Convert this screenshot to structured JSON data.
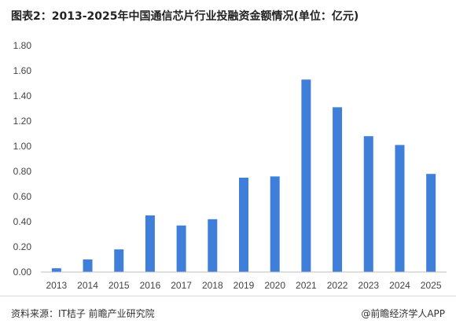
{
  "title": "图表2：2013-2025年中国通信芯片行业投融资金额情况(单位：亿元)",
  "source": "资料来源：IT桔子 前瞻产业研究院",
  "credit": "@前瞻经济学人APP",
  "colors": {
    "bar": "#3f7fd9",
    "axis": "#bfbfbf",
    "text": "#444444"
  },
  "chart_data": {
    "type": "bar",
    "title": "图表2：2013-2025年中国通信芯片行业投融资金额情况(单位：亿元)",
    "xlabel": "",
    "ylabel": "",
    "categories": [
      "2013",
      "2014",
      "2015",
      "2016",
      "2017",
      "2018",
      "2019",
      "2020",
      "2021",
      "2022",
      "2023",
      "2024",
      "2025"
    ],
    "series": [
      {
        "values": [
          0.03,
          0.1,
          0.18,
          0.45,
          0.37,
          0.42,
          0.75,
          0.76,
          1.53,
          1.31,
          1.08,
          1.01,
          0.78
        ]
      }
    ],
    "ylim": [
      0,
      1.8
    ],
    "yticks": [
      "0.00",
      "0.20",
      "0.40",
      "0.60",
      "0.80",
      "1.00",
      "1.20",
      "1.40",
      "1.60",
      "1.80"
    ],
    "grid": false,
    "legend": "none"
  }
}
